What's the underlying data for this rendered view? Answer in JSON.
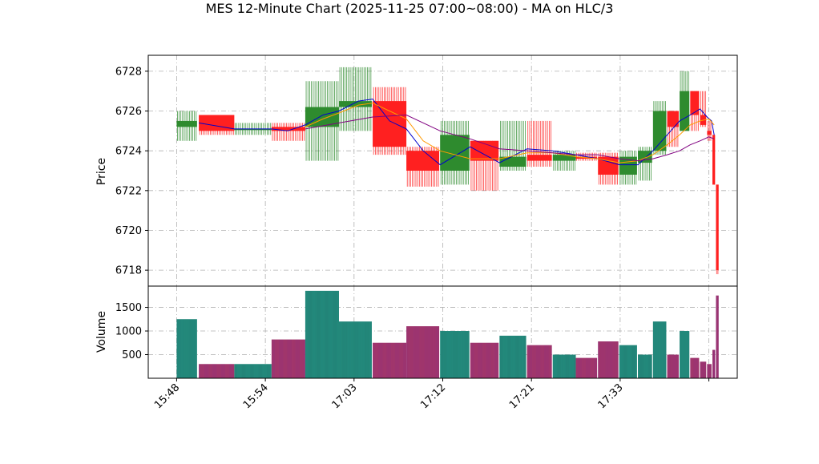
{
  "chart_data": {
    "type": "candlestick",
    "title": "MES 12-Minute Chart (2025-11-25 07:00~08:00) - MA on HLC/3",
    "price_panel": {
      "ylabel": "Price",
      "ylim": [
        6717.2,
        6728.8
      ],
      "yticks": [
        6718,
        6720,
        6722,
        6724,
        6726,
        6728
      ],
      "grid": true
    },
    "volume_panel": {
      "ylabel": "Volume",
      "ylim": [
        0,
        1950
      ],
      "yticks": [
        500,
        1000,
        1500
      ],
      "yticklabels": [
        "500",
        "1000",
        "1500"
      ]
    },
    "x_ticks": [
      {
        "index": 0,
        "label": "15:48"
      },
      {
        "index": 10,
        "label": "15:54"
      },
      {
        "index": 20,
        "label": "17:03"
      },
      {
        "index": 30,
        "label": "17:12"
      },
      {
        "index": 40,
        "label": "17:21"
      },
      {
        "index": 50,
        "label": "17:33"
      },
      {
        "index": 60,
        "label": ""
      }
    ],
    "x_range": [
      -3.2,
      63.2
    ],
    "colors": {
      "up": "#2e8b2e",
      "down": "#ff2020",
      "grid": "#b0b0b0",
      "ma_fast": "#0000cc",
      "ma_mid": "#ff9900",
      "ma_slow": "#800080",
      "vol_up_fill": "#1f7a6e",
      "vol_down_fill": "#b23a5c"
    },
    "candles": [
      {
        "x": 0,
        "w": 2.3,
        "o": 6725.2,
        "h": 6726.0,
        "l": 6724.5,
        "c": 6725.5,
        "v": 1250
      },
      {
        "x": 2.5,
        "w": 4.0,
        "o": 6725.8,
        "h": 6725.8,
        "l": 6724.8,
        "c": 6725.0,
        "v": 300
      },
      {
        "x": 6.5,
        "w": 4.2,
        "o": 6725.1,
        "h": 6725.4,
        "l": 6724.8,
        "c": 6725.1,
        "v": 300
      },
      {
        "x": 10.7,
        "w": 3.8,
        "o": 6725.2,
        "h": 6725.4,
        "l": 6724.5,
        "c": 6725.0,
        "v": 820
      },
      {
        "x": 14.5,
        "w": 3.8,
        "o": 6725.2,
        "h": 6727.5,
        "l": 6723.5,
        "c": 6726.2,
        "v": 1850
      },
      {
        "x": 18.3,
        "w": 3.7,
        "o": 6726.2,
        "h": 6728.2,
        "l": 6725.0,
        "c": 6726.5,
        "v": 1200
      },
      {
        "x": 22.1,
        "w": 3.8,
        "o": 6726.5,
        "h": 6727.2,
        "l": 6723.8,
        "c": 6724.2,
        "v": 750
      },
      {
        "x": 25.9,
        "w": 3.7,
        "o": 6724.0,
        "h": 6724.2,
        "l": 6722.2,
        "c": 6723.0,
        "v": 1100
      },
      {
        "x": 29.7,
        "w": 3.3,
        "o": 6723.0,
        "h": 6725.5,
        "l": 6722.3,
        "c": 6724.8,
        "v": 1000
      },
      {
        "x": 33.1,
        "w": 3.2,
        "o": 6724.5,
        "h": 6724.5,
        "l": 6722.0,
        "c": 6723.5,
        "v": 750
      },
      {
        "x": 36.4,
        "w": 3.0,
        "o": 6723.2,
        "h": 6725.5,
        "l": 6723.0,
        "c": 6723.7,
        "v": 900
      },
      {
        "x": 39.5,
        "w": 2.8,
        "o": 6723.8,
        "h": 6725.5,
        "l": 6723.2,
        "c": 6723.5,
        "v": 700
      },
      {
        "x": 42.4,
        "w": 2.6,
        "o": 6723.5,
        "h": 6724.0,
        "l": 6723.0,
        "c": 6723.8,
        "v": 500
      },
      {
        "x": 45.0,
        "w": 2.4,
        "o": 6723.7,
        "h": 6723.9,
        "l": 6723.5,
        "c": 6723.6,
        "v": 430
      },
      {
        "x": 47.5,
        "w": 2.3,
        "o": 6723.7,
        "h": 6723.9,
        "l": 6722.3,
        "c": 6722.8,
        "v": 780
      },
      {
        "x": 49.9,
        "w": 2.0,
        "o": 6722.8,
        "h": 6724.0,
        "l": 6722.3,
        "c": 6723.7,
        "v": 700
      },
      {
        "x": 52.0,
        "w": 1.6,
        "o": 6723.4,
        "h": 6724.2,
        "l": 6722.5,
        "c": 6724.0,
        "v": 500
      },
      {
        "x": 53.7,
        "w": 1.5,
        "o": 6724.0,
        "h": 6726.5,
        "l": 6723.8,
        "c": 6726.0,
        "v": 1200
      },
      {
        "x": 55.3,
        "w": 1.3,
        "o": 6726.0,
        "h": 6726.0,
        "l": 6724.2,
        "c": 6725.2,
        "v": 500
      },
      {
        "x": 56.7,
        "w": 1.1,
        "o": 6725.0,
        "h": 6728.0,
        "l": 6725.0,
        "c": 6727.0,
        "v": 1000
      },
      {
        "x": 57.9,
        "w": 1.0,
        "o": 6727.0,
        "h": 6727.0,
        "l": 6725.0,
        "c": 6725.8,
        "v": 430
      },
      {
        "x": 59.0,
        "w": 0.7,
        "o": 6725.8,
        "h": 6727.0,
        "l": 6725.2,
        "c": 6725.3,
        "v": 350
      },
      {
        "x": 59.8,
        "w": 0.5,
        "o": 6725.0,
        "h": 6725.5,
        "l": 6724.5,
        "c": 6724.8,
        "v": 300
      },
      {
        "x": 60.4,
        "w": 0.3,
        "o": 6724.8,
        "h": 6724.8,
        "l": 6722.3,
        "c": 6722.3,
        "v": 600
      },
      {
        "x": 60.8,
        "w": 0.3,
        "o": 6722.3,
        "h": 6722.3,
        "l": 6717.8,
        "c": 6718.0,
        "v": 1750
      }
    ],
    "ma_series": [
      {
        "key": "ma_fast",
        "points": [
          [
            2.5,
            6725.4
          ],
          [
            6.5,
            6725.1
          ],
          [
            10.7,
            6725.1
          ],
          [
            12.5,
            6725.0
          ],
          [
            14.5,
            6725.3
          ],
          [
            16.5,
            6725.8
          ],
          [
            18.3,
            6726.0
          ],
          [
            20.5,
            6726.5
          ],
          [
            22.1,
            6726.6
          ],
          [
            24.0,
            6725.5
          ],
          [
            25.9,
            6725.1
          ],
          [
            27.8,
            6724.0
          ],
          [
            29.7,
            6723.3
          ],
          [
            33.1,
            6724.2
          ],
          [
            36.4,
            6723.4
          ],
          [
            39.5,
            6724.1
          ],
          [
            42.4,
            6724.0
          ],
          [
            45.0,
            6723.8
          ],
          [
            47.5,
            6723.6
          ],
          [
            49.9,
            6723.3
          ],
          [
            52.0,
            6723.3
          ],
          [
            53.7,
            6724.0
          ],
          [
            55.3,
            6724.8
          ],
          [
            56.7,
            6725.5
          ],
          [
            57.9,
            6725.8
          ],
          [
            59.0,
            6726.1
          ],
          [
            59.8,
            6725.7
          ],
          [
            60.3,
            6725.5
          ],
          [
            60.6,
            6724.8
          ]
        ]
      },
      {
        "key": "ma_mid",
        "points": [
          [
            14.5,
            6725.2
          ],
          [
            16.5,
            6725.6
          ],
          [
            18.3,
            6725.9
          ],
          [
            20.5,
            6726.3
          ],
          [
            22.1,
            6726.4
          ],
          [
            24.0,
            6726.0
          ],
          [
            25.9,
            6725.6
          ],
          [
            27.8,
            6724.5
          ],
          [
            29.7,
            6724.0
          ],
          [
            33.1,
            6723.6
          ],
          [
            36.4,
            6723.6
          ],
          [
            39.5,
            6723.9
          ],
          [
            42.4,
            6723.9
          ],
          [
            45.0,
            6723.7
          ],
          [
            47.5,
            6723.6
          ],
          [
            49.9,
            6723.4
          ],
          [
            52.0,
            6723.5
          ],
          [
            53.7,
            6723.8
          ],
          [
            55.3,
            6724.3
          ],
          [
            56.7,
            6724.8
          ],
          [
            57.9,
            6725.3
          ],
          [
            59.0,
            6725.5
          ],
          [
            60.0,
            6725.6
          ],
          [
            60.6,
            6725.3
          ]
        ]
      },
      {
        "key": "ma_slow",
        "points": [
          [
            14.5,
            6725.1
          ],
          [
            18.3,
            6725.4
          ],
          [
            22.1,
            6725.7
          ],
          [
            25.9,
            6725.8
          ],
          [
            29.7,
            6725.0
          ],
          [
            33.1,
            6724.6
          ],
          [
            36.4,
            6724.1
          ],
          [
            39.5,
            6724.0
          ],
          [
            42.4,
            6723.9
          ],
          [
            45.0,
            6723.8
          ],
          [
            47.5,
            6723.8
          ],
          [
            49.9,
            6723.6
          ],
          [
            52.0,
            6723.5
          ],
          [
            53.7,
            6723.6
          ],
          [
            55.3,
            6723.8
          ],
          [
            56.7,
            6724.0
          ],
          [
            57.9,
            6724.3
          ],
          [
            59.0,
            6724.5
          ],
          [
            60.0,
            6724.7
          ],
          [
            60.6,
            6724.6
          ]
        ]
      }
    ]
  }
}
